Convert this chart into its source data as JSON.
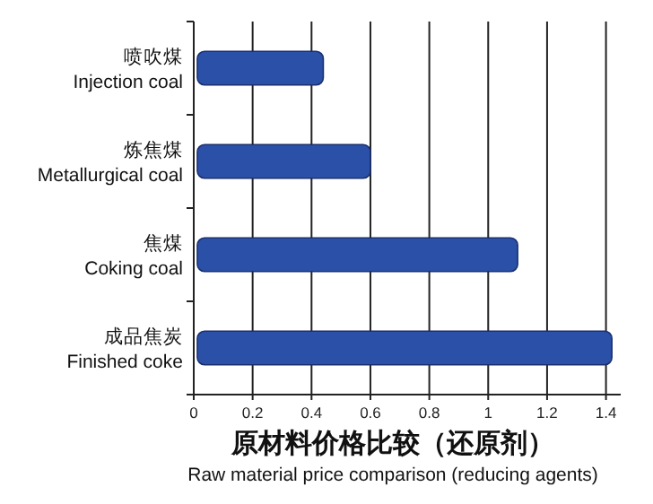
{
  "chart_data": {
    "type": "bar",
    "orientation": "horizontal",
    "categories": [
      "喷吹煤\nInjection coal",
      "炼焦煤\nMetallurgical coal",
      "焦煤\nCoking coal",
      "成品焦炭\nFinished coke"
    ],
    "values": [
      0.44,
      0.6,
      1.1,
      1.42
    ],
    "color": "#2b50a8",
    "xlim": [
      0,
      1.45
    ],
    "xticks": [
      0,
      0.2,
      0.4,
      0.6,
      0.8,
      1,
      1.2,
      1.4
    ],
    "xlabel": "原材料价格比较（还原剂）\nRaw material price comparison (reducing agents)",
    "grid": "x"
  }
}
